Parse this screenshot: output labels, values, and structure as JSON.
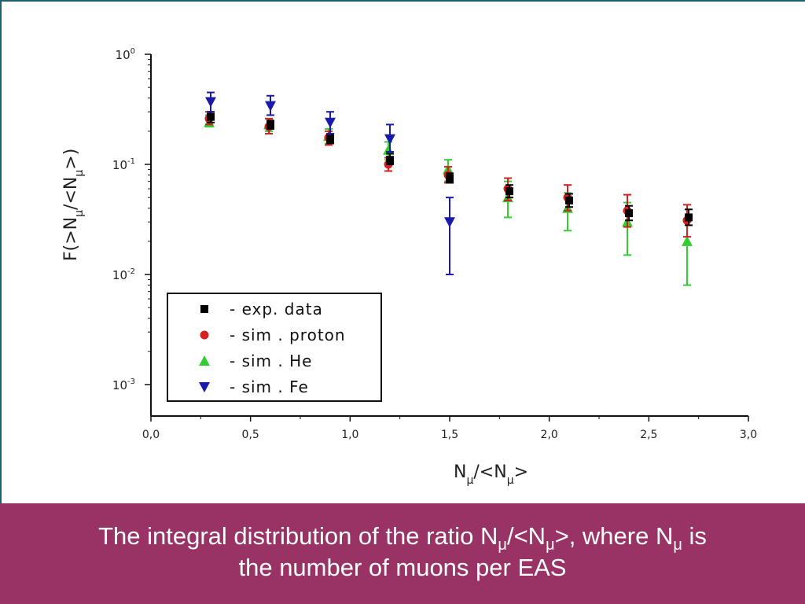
{
  "caption": {
    "line1_a": "The integral distribution of the ratio N",
    "sub1": "μ",
    "line1_b": "/<N",
    "sub2": "μ",
    "line1_c": ">, where N",
    "sub3": "μ",
    "line1_d": " is",
    "line2": "the number of muons per EAS"
  },
  "colors": {
    "caption_bg": "#993366",
    "exp": "#000000",
    "proton": "#d42020",
    "he": "#33cc33",
    "fe": "#1a1aa8"
  },
  "chart_data": {
    "type": "scatter",
    "xlabel_main": "N",
    "xlabel_sub": "μ",
    "xlabel_mid": "/<N",
    "xlabel_sub2": "μ",
    "xlabel_end": ">",
    "ylabel_main": "F(>N",
    "ylabel_sub": "μ",
    "ylabel_mid": "/<N",
    "ylabel_sub2": "μ",
    "ylabel_end": ">)",
    "xlim": [
      0.0,
      3.0
    ],
    "ylim": [
      0.001,
      1.0
    ],
    "y_scale": "log",
    "xticks": [
      "0,0",
      "0,5",
      "1,0",
      "1,5",
      "2,0",
      "2,5",
      "3,0"
    ],
    "yticks": [
      {
        "base": "10",
        "exp": "0"
      },
      {
        "base": "10",
        "exp": "-1"
      },
      {
        "base": "10",
        "exp": "-2"
      },
      {
        "base": "10",
        "exp": "-3"
      }
    ],
    "legend_position": "lower-left",
    "series": [
      {
        "name": "- exp. data",
        "marker": "square",
        "color": "#000000",
        "points": [
          {
            "x": 0.3,
            "y": 0.27,
            "lo": 0.24,
            "hi": 0.3
          },
          {
            "x": 0.6,
            "y": 0.23,
            "lo": 0.21,
            "hi": 0.25
          },
          {
            "x": 0.9,
            "y": 0.17,
            "lo": 0.155,
            "hi": 0.185
          },
          {
            "x": 1.2,
            "y": 0.11,
            "lo": 0.1,
            "hi": 0.125
          },
          {
            "x": 1.5,
            "y": 0.075,
            "lo": 0.068,
            "hi": 0.083
          },
          {
            "x": 1.8,
            "y": 0.057,
            "lo": 0.05,
            "hi": 0.065
          },
          {
            "x": 2.1,
            "y": 0.047,
            "lo": 0.041,
            "hi": 0.054
          },
          {
            "x": 2.4,
            "y": 0.036,
            "lo": 0.031,
            "hi": 0.042
          },
          {
            "x": 2.7,
            "y": 0.033,
            "lo": 0.028,
            "hi": 0.039
          }
        ]
      },
      {
        "name": "- sim . proton",
        "marker": "circle",
        "color": "#d42020",
        "points": [
          {
            "x": 0.3,
            "y": 0.26,
            "lo": 0.23,
            "hi": 0.3
          },
          {
            "x": 0.6,
            "y": 0.22,
            "lo": 0.19,
            "hi": 0.26
          },
          {
            "x": 0.9,
            "y": 0.175,
            "lo": 0.15,
            "hi": 0.2
          },
          {
            "x": 1.2,
            "y": 0.1,
            "lo": 0.087,
            "hi": 0.115
          },
          {
            "x": 1.5,
            "y": 0.08,
            "lo": 0.068,
            "hi": 0.095
          },
          {
            "x": 1.8,
            "y": 0.06,
            "lo": 0.047,
            "hi": 0.075
          },
          {
            "x": 2.1,
            "y": 0.05,
            "lo": 0.038,
            "hi": 0.065
          },
          {
            "x": 2.4,
            "y": 0.038,
            "lo": 0.027,
            "hi": 0.053
          },
          {
            "x": 2.7,
            "y": 0.031,
            "lo": 0.022,
            "hi": 0.043
          }
        ]
      },
      {
        "name": "- sim . He",
        "marker": "triangle-up",
        "color": "#33cc33",
        "points": [
          {
            "x": 0.3,
            "y": 0.24,
            "lo": 0.22,
            "hi": 0.28
          },
          {
            "x": 0.6,
            "y": 0.23,
            "lo": 0.2,
            "hi": 0.26
          },
          {
            "x": 0.9,
            "y": 0.18,
            "lo": 0.155,
            "hi": 0.21
          },
          {
            "x": 1.2,
            "y": 0.135,
            "lo": 0.11,
            "hi": 0.16
          },
          {
            "x": 1.5,
            "y": 0.09,
            "lo": 0.07,
            "hi": 0.11
          },
          {
            "x": 1.8,
            "y": 0.05,
            "lo": 0.033,
            "hi": 0.07
          },
          {
            "x": 2.1,
            "y": 0.04,
            "lo": 0.025,
            "hi": 0.055
          },
          {
            "x": 2.4,
            "y": 0.03,
            "lo": 0.015,
            "hi": 0.045
          },
          {
            "x": 2.7,
            "y": 0.02,
            "lo": 0.008,
            "hi": 0.032
          }
        ]
      },
      {
        "name": "- sim . Fe",
        "marker": "triangle-down",
        "color": "#1a1aa8",
        "points": [
          {
            "x": 0.3,
            "y": 0.37,
            "lo": 0.3,
            "hi": 0.45
          },
          {
            "x": 0.6,
            "y": 0.34,
            "lo": 0.28,
            "hi": 0.42
          },
          {
            "x": 0.9,
            "y": 0.24,
            "lo": 0.19,
            "hi": 0.3
          },
          {
            "x": 1.2,
            "y": 0.17,
            "lo": 0.13,
            "hi": 0.23
          },
          {
            "x": 1.5,
            "y": 0.03,
            "lo": 0.01,
            "hi": 0.05
          }
        ]
      }
    ]
  }
}
